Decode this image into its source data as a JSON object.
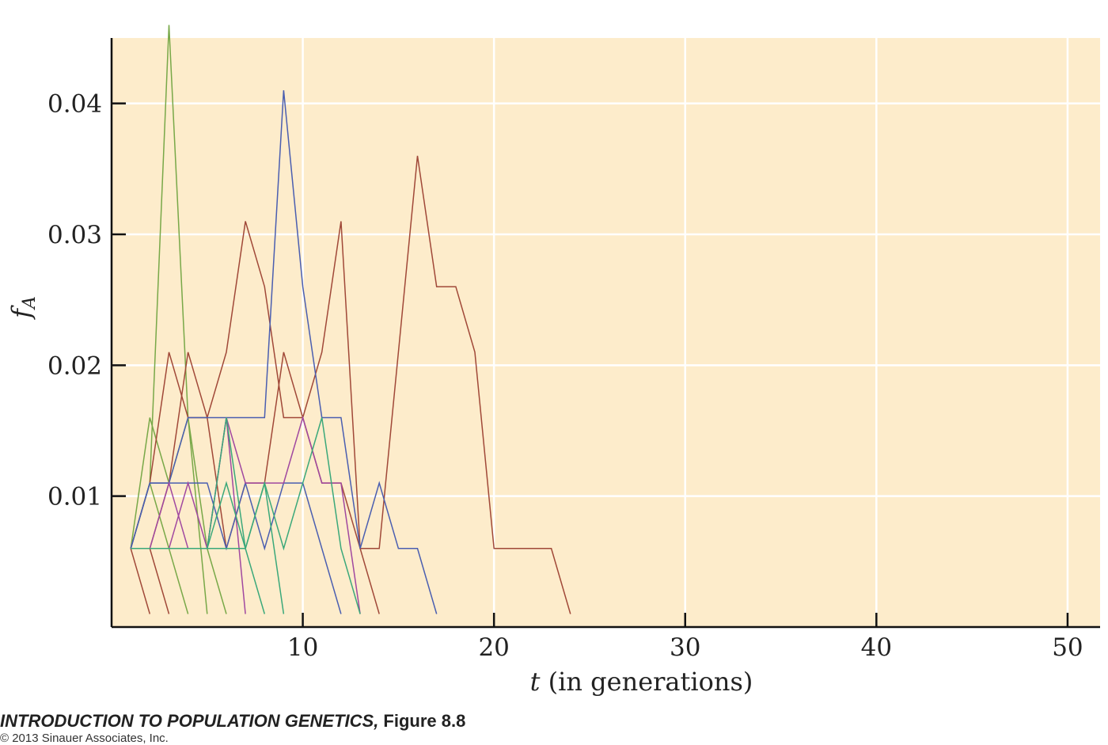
{
  "chart_data": {
    "type": "line",
    "xlabel_var": "t",
    "xlabel_rest": " (in generations)",
    "ylabel_var": "f",
    "ylabel_sub": "A",
    "xlim": [
      0,
      51.7
    ],
    "ylim": [
      0.0,
      0.045
    ],
    "xticks": [
      10,
      20,
      30,
      40,
      50
    ],
    "xtick_labels": [
      "10",
      "20",
      "30",
      "40",
      "50"
    ],
    "yticks": [
      0.01,
      0.02,
      0.03,
      0.04
    ],
    "ytick_labels": [
      "0.01",
      "0.02",
      "0.03",
      "0.04"
    ],
    "grid": true,
    "background": "#fdeccb",
    "series": [
      {
        "color": "#78a848",
        "x": [
          1,
          2,
          3,
          4,
          5,
          6
        ],
        "y": [
          0.006,
          0.016,
          0.011,
          0.016,
          0.006,
          0.001
        ]
      },
      {
        "color": "#78a848",
        "x": [
          1,
          2,
          3,
          4
        ],
        "y": [
          0.006,
          0.011,
          0.006,
          0.001
        ]
      },
      {
        "color": "#78a848",
        "x": [
          1,
          2,
          3,
          4,
          5
        ],
        "y": [
          0.006,
          0.011,
          0.046,
          0.016,
          0.001
        ]
      },
      {
        "color": "#a04838",
        "x": [
          1,
          2
        ],
        "y": [
          0.006,
          0.001
        ]
      },
      {
        "color": "#a04838",
        "x": [
          1,
          2,
          3
        ],
        "y": [
          0.006,
          0.006,
          0.001
        ]
      },
      {
        "color": "#a04838",
        "x": [
          1,
          2,
          3,
          4,
          5,
          6,
          7,
          8,
          9,
          10,
          11,
          12,
          13,
          14
        ],
        "y": [
          0.006,
          0.011,
          0.021,
          0.016,
          0.016,
          0.006,
          0.011,
          0.011,
          0.021,
          0.016,
          0.011,
          0.011,
          0.006,
          0.001
        ]
      },
      {
        "color": "#a04838",
        "x": [
          1,
          2,
          3,
          4,
          5,
          6,
          7,
          8,
          9,
          10,
          11,
          12,
          13,
          14,
          15,
          16,
          17,
          18,
          19,
          20,
          21,
          22,
          23,
          24
        ],
        "y": [
          0.006,
          0.006,
          0.011,
          0.021,
          0.016,
          0.021,
          0.031,
          0.026,
          0.016,
          0.016,
          0.021,
          0.031,
          0.006,
          0.006,
          0.021,
          0.036,
          0.026,
          0.026,
          0.021,
          0.006,
          0.006,
          0.006,
          0.006,
          0.001
        ]
      },
      {
        "color": "#4a5eb0",
        "x": [
          1,
          2,
          3,
          4,
          5,
          6,
          7,
          8,
          9,
          10,
          11,
          12,
          13,
          14,
          15,
          16,
          17
        ],
        "y": [
          0.006,
          0.011,
          0.011,
          0.016,
          0.016,
          0.016,
          0.016,
          0.016,
          0.041,
          0.026,
          0.016,
          0.016,
          0.006,
          0.011,
          0.006,
          0.006,
          0.001
        ]
      },
      {
        "color": "#4a5eb0",
        "x": [
          1,
          2,
          3,
          4,
          5,
          6,
          7,
          8,
          9,
          10,
          11,
          12
        ],
        "y": [
          0.006,
          0.011,
          0.011,
          0.011,
          0.011,
          0.006,
          0.011,
          0.006,
          0.011,
          0.011,
          0.006,
          0.001
        ]
      },
      {
        "color": "#a048a0",
        "x": [
          1,
          2,
          3,
          4,
          5,
          6,
          7
        ],
        "y": [
          0.006,
          0.006,
          0.011,
          0.006,
          0.006,
          0.016,
          0.001
        ]
      },
      {
        "color": "#a048a0",
        "x": [
          1,
          2,
          3,
          4,
          5,
          6,
          7,
          8,
          9,
          10,
          11,
          12,
          13
        ],
        "y": [
          0.006,
          0.006,
          0.006,
          0.011,
          0.006,
          0.016,
          0.011,
          0.011,
          0.011,
          0.016,
          0.011,
          0.011,
          0.001
        ]
      },
      {
        "color": "#3aa87a",
        "x": [
          1,
          2,
          3,
          4,
          5,
          6,
          7,
          8,
          9
        ],
        "y": [
          0.006,
          0.006,
          0.006,
          0.006,
          0.006,
          0.011,
          0.006,
          0.011,
          0.001
        ]
      },
      {
        "color": "#3aa87a",
        "x": [
          1,
          2,
          3,
          4,
          5,
          6,
          7,
          8,
          9,
          10,
          11,
          12,
          13
        ],
        "y": [
          0.006,
          0.006,
          0.006,
          0.006,
          0.006,
          0.006,
          0.006,
          0.011,
          0.006,
          0.011,
          0.016,
          0.006,
          0.001
        ]
      },
      {
        "color": "#3aa87a",
        "x": [
          1,
          2,
          3,
          4,
          5,
          6,
          7,
          8
        ],
        "y": [
          0.006,
          0.006,
          0.006,
          0.006,
          0.006,
          0.016,
          0.006,
          0.001
        ]
      }
    ]
  },
  "caption": {
    "book_title": "INTRODUCTION TO POPULATION GENETICS,",
    "figure_label": " Figure 8.8",
    "copyright": "© 2013 Sinauer Associates, Inc."
  }
}
